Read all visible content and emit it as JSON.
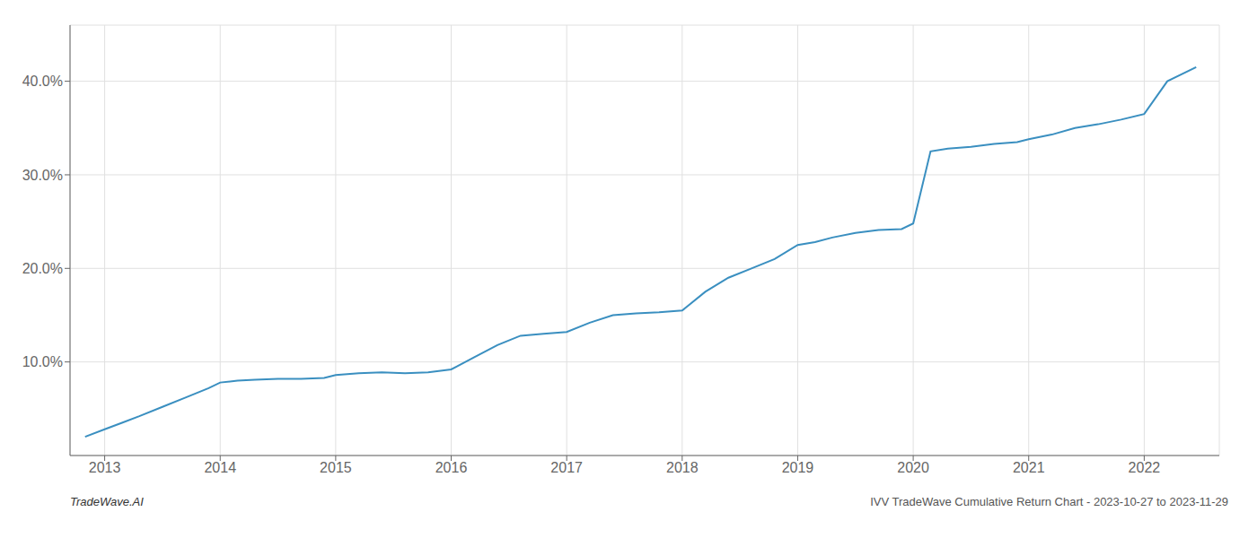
{
  "chart_data": {
    "type": "line",
    "annotations": [
      "TradeWave.AI",
      "IVV TradeWave Cumulative Return Chart - 2023-10-27 to 2023-11-29"
    ],
    "x": [
      2012.83,
      2013.0,
      2013.15,
      2013.3,
      2013.5,
      2013.7,
      2013.9,
      2014.0,
      2014.15,
      2014.3,
      2014.5,
      2014.7,
      2014.9,
      2015.0,
      2015.2,
      2015.4,
      2015.6,
      2015.8,
      2016.0,
      2016.2,
      2016.4,
      2016.6,
      2016.8,
      2017.0,
      2017.2,
      2017.4,
      2017.6,
      2017.8,
      2018.0,
      2018.2,
      2018.4,
      2018.6,
      2018.8,
      2019.0,
      2019.15,
      2019.3,
      2019.5,
      2019.7,
      2019.9,
      2020.0,
      2020.15,
      2020.3,
      2020.5,
      2020.7,
      2020.9,
      2021.0,
      2021.2,
      2021.4,
      2021.6,
      2021.8,
      2022.0,
      2022.2,
      2022.45
    ],
    "values": [
      2.0,
      2.8,
      3.5,
      4.2,
      5.2,
      6.2,
      7.2,
      7.8,
      8.0,
      8.1,
      8.2,
      8.2,
      8.3,
      8.6,
      8.8,
      8.9,
      8.8,
      8.9,
      9.2,
      10.5,
      11.8,
      12.8,
      13.0,
      13.2,
      14.2,
      15.0,
      15.2,
      15.3,
      15.5,
      17.5,
      19.0,
      20.0,
      21.0,
      22.5,
      22.8,
      23.3,
      23.8,
      24.1,
      24.2,
      24.8,
      32.5,
      32.8,
      33.0,
      33.3,
      33.5,
      33.8,
      34.3,
      35.0,
      35.4,
      35.9,
      36.5,
      40.0,
      41.5
    ],
    "color": "#3a8fc0",
    "xlim": [
      2012.7,
      2022.65
    ],
    "ylim": [
      0,
      46
    ],
    "xticks": [
      2013,
      2014,
      2015,
      2016,
      2017,
      2018,
      2019,
      2020,
      2021,
      2022
    ],
    "yticks": [
      {
        "value": 10.0,
        "label": "10.0%"
      },
      {
        "value": 20.0,
        "label": "20.0%"
      },
      {
        "value": 30.0,
        "label": "30.0%"
      },
      {
        "value": 40.0,
        "label": "40.0%"
      }
    ],
    "grid": true
  }
}
